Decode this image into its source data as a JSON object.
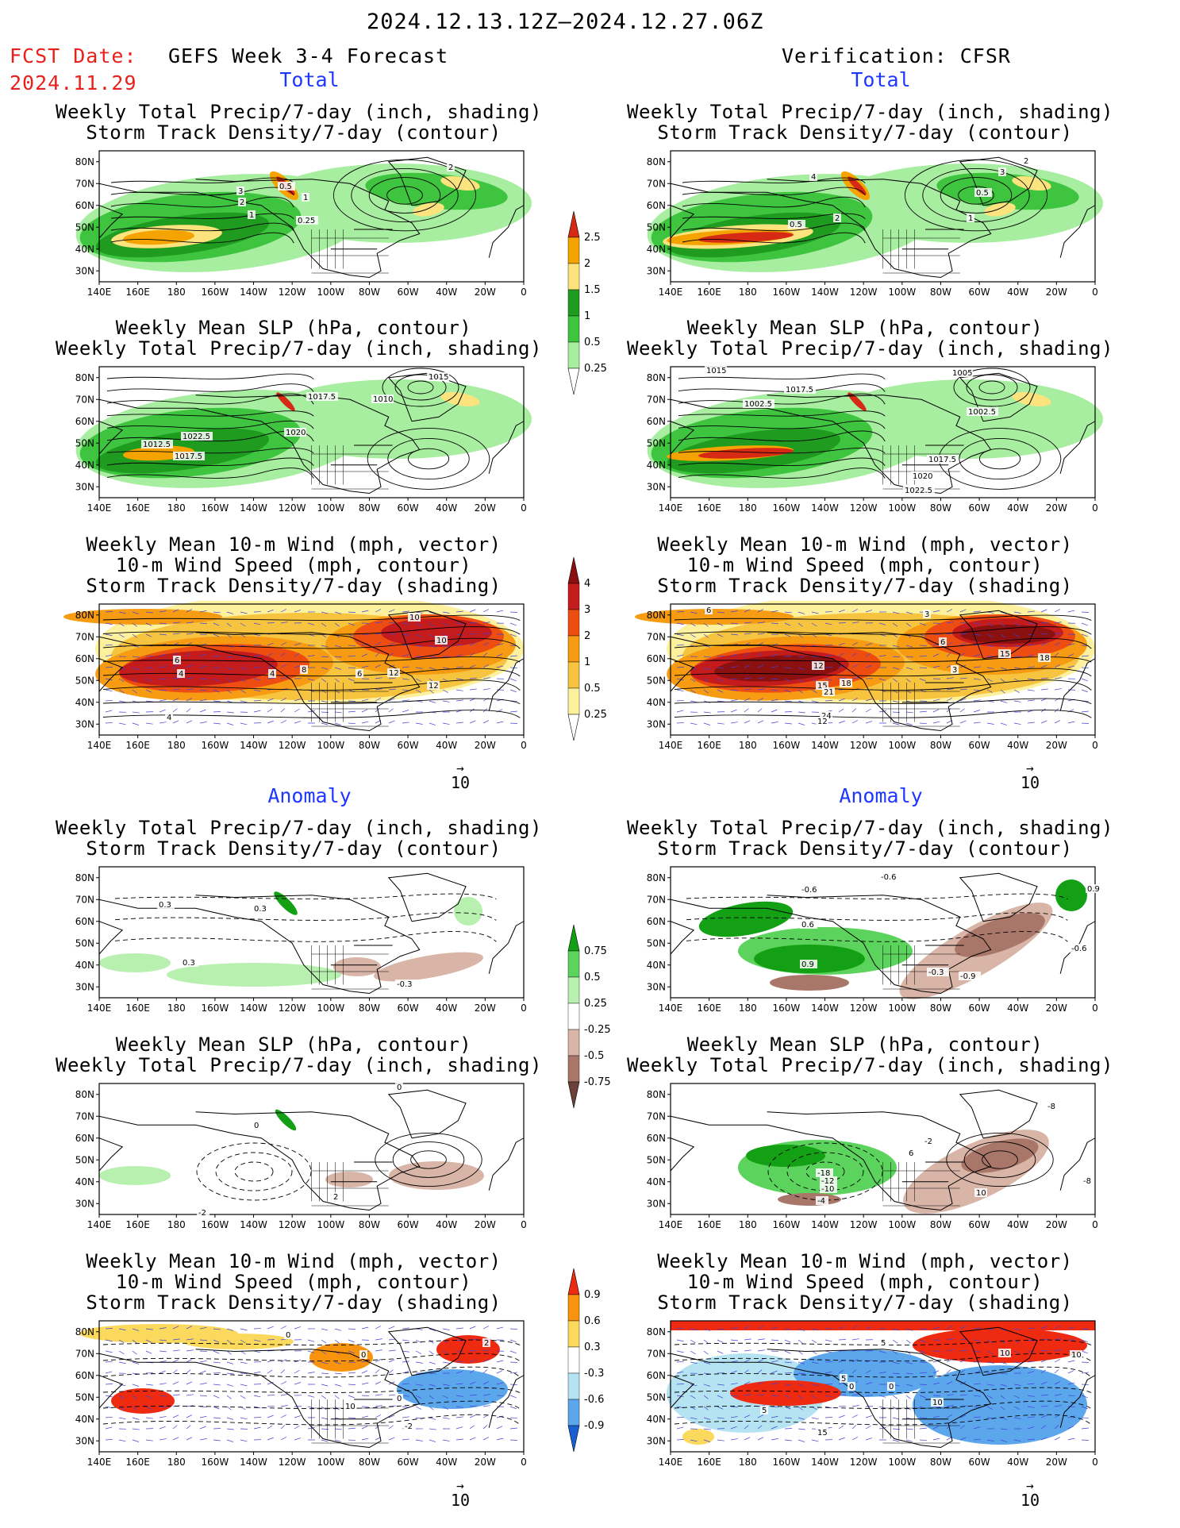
{
  "header": {
    "period": "2024.12.13.12Z–2024.12.27.06Z",
    "fcst_label": "FCST Date:",
    "fcst_date": "2024.11.29",
    "left_title": "GEFS Week 3-4 Forecast",
    "right_title": "Verification: CFSR"
  },
  "sections": {
    "total": "Total",
    "anomaly": "Anomaly"
  },
  "panel_titles": {
    "precip": [
      "Weekly Total Precip/7-day (inch, shading)",
      "Storm Track Density/7-day (contour)"
    ],
    "slp": [
      "Weekly Mean SLP (hPa, contour)",
      "Weekly Total Precip/7-day (inch, shading)"
    ],
    "wind": [
      "Weekly Mean 10-m Wind (mph, vector)",
      "10-m Wind Speed (mph, contour)",
      "Storm Track Density/7-day (shading)"
    ]
  },
  "axes": {
    "lat_labels": [
      "80N",
      "70N",
      "60N",
      "50N",
      "40N",
      "30N"
    ],
    "lon_labels": [
      "140E",
      "160E",
      "180",
      "160W",
      "140W",
      "120W",
      "100W",
      "80W",
      "60W",
      "40W",
      "20W",
      "0"
    ]
  },
  "vector_ref": "10",
  "colorbars": {
    "precip_total": {
      "labels": [
        "2.5",
        "2",
        "1.5",
        "1",
        "0.5",
        "0.25"
      ],
      "colors": [
        "#d62a14",
        "#f5a300",
        "#fde37e",
        "#1f9b1f",
        "#3fc43f",
        "#a8eea0",
        "#ffffff"
      ]
    },
    "storm_total": {
      "labels": [
        "4",
        "3",
        "2",
        "1",
        "0.5",
        "0.25"
      ],
      "colors": [
        "#8b1010",
        "#c41c1c",
        "#ee4d12",
        "#f79b12",
        "#f7c440",
        "#fdf19e",
        "#ffffff"
      ]
    },
    "precip_anom": {
      "labels": [
        "0.75",
        "0.5",
        "0.25",
        "-0.25",
        "-0.5",
        "-0.75"
      ],
      "colors": [
        "#14a014",
        "#5cd35c",
        "#b8f0b0",
        "#ffffff",
        "#d9b5a8",
        "#a9776a",
        "#6b4038"
      ]
    },
    "storm_anom": {
      "labels": [
        "0.9",
        "0.6",
        "0.3",
        "-0.3",
        "-0.6",
        "-0.9"
      ],
      "colors": [
        "#ee2a10",
        "#f7930c",
        "#fbd95c",
        "#ffffff",
        "#b6e3f2",
        "#5ca6ec",
        "#1a5fd2"
      ]
    }
  },
  "contour_labels": {
    "p1": [
      "3",
      "2",
      "1",
      "0.5",
      "0.25",
      "1",
      "2"
    ],
    "p2": [
      "1012.5",
      "1017.5",
      "1010",
      "1020",
      "1017.5",
      "1022.5",
      "1015"
    ],
    "p3": [
      "4",
      "4",
      "8",
      "6",
      "12",
      "10",
      "12",
      "10",
      "6",
      "4"
    ],
    "p4": [
      "0.3",
      "0.3",
      "0.3",
      "-0.3"
    ],
    "p5": [
      "0",
      "-2",
      "2",
      "0"
    ],
    "p6": [
      "2",
      "0",
      "0",
      "0",
      "10",
      "-2"
    ],
    "v1": [
      "4",
      "2",
      "0.5",
      "1",
      "0.5",
      "3",
      "2"
    ],
    "v2": [
      "1015",
      "1017.5",
      "1002.5",
      "1005",
      "1002.5",
      "1017.5",
      "1020",
      "1022.5"
    ],
    "v3": [
      "6",
      "3",
      "12",
      "15",
      "21",
      "18",
      "24",
      "12",
      "6",
      "15",
      "18",
      "3"
    ],
    "v4": [
      "-0.6",
      "-0.6",
      "0.6",
      "0.9",
      "-0.9",
      "-0.3",
      "0.9",
      "-0.6"
    ],
    "v5": [
      "-8",
      "-2",
      "-18",
      "-12",
      "-10",
      "-4",
      "10",
      "-8",
      "6"
    ],
    "v6": [
      "5",
      "0",
      "5",
      "10",
      "5",
      "10",
      "15",
      "0",
      "10"
    ]
  }
}
